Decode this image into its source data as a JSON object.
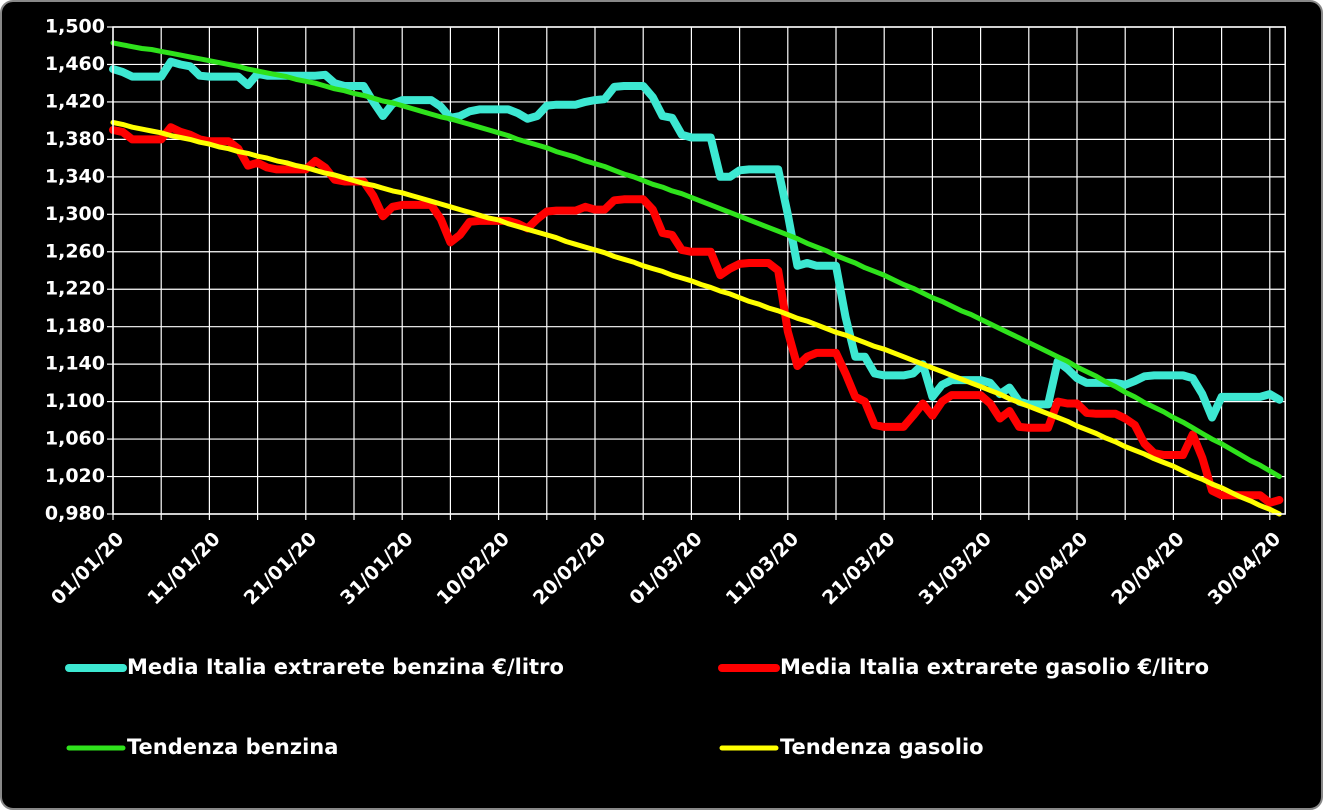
{
  "chart_data": {
    "type": "line",
    "categories": [
      "01/01/20",
      null,
      null,
      null,
      null,
      null,
      null,
      null,
      null,
      null,
      "11/01/20",
      null,
      null,
      null,
      null,
      null,
      null,
      null,
      null,
      null,
      "21/01/20",
      null,
      null,
      null,
      null,
      null,
      null,
      null,
      null,
      null,
      "31/01/20",
      null,
      null,
      null,
      null,
      null,
      null,
      null,
      null,
      null,
      "10/02/20",
      null,
      null,
      null,
      null,
      null,
      null,
      null,
      null,
      null,
      "20/02/20",
      null,
      null,
      null,
      null,
      null,
      null,
      null,
      null,
      null,
      "01/03/20",
      null,
      null,
      null,
      null,
      null,
      null,
      null,
      null,
      null,
      "11/03/20",
      null,
      null,
      null,
      null,
      null,
      null,
      null,
      null,
      null,
      "21/03/20",
      null,
      null,
      null,
      null,
      null,
      null,
      null,
      null,
      null,
      "31/03/20",
      null,
      null,
      null,
      null,
      null,
      null,
      null,
      null,
      null,
      "10/04/20",
      null,
      null,
      null,
      null,
      null,
      null,
      null,
      null,
      null,
      "20/04/20",
      null,
      null,
      null,
      null,
      null,
      null,
      null,
      null,
      null,
      "30/04/20",
      null
    ],
    "series": [
      {
        "name": "Media Italia extrarete benzina €/litro",
        "color": "#3de8d2",
        "values": [
          1.455,
          1.452,
          1.447,
          1.447,
          1.447,
          1.447,
          1.463,
          1.46,
          1.458,
          1.448,
          1.447,
          1.447,
          1.447,
          1.447,
          1.438,
          1.45,
          1.448,
          1.448,
          1.448,
          1.448,
          1.448,
          1.448,
          1.449,
          1.44,
          1.437,
          1.437,
          1.437,
          1.42,
          1.405,
          1.418,
          1.422,
          1.422,
          1.422,
          1.422,
          1.415,
          1.403,
          1.405,
          1.41,
          1.412,
          1.412,
          1.412,
          1.412,
          1.408,
          1.402,
          1.405,
          1.416,
          1.417,
          1.417,
          1.417,
          1.42,
          1.422,
          1.423,
          1.436,
          1.437,
          1.437,
          1.437,
          1.425,
          1.405,
          1.403,
          1.385,
          1.382,
          1.382,
          1.382,
          1.34,
          1.34,
          1.347,
          1.348,
          1.348,
          1.348,
          1.348,
          1.3,
          1.245,
          1.248,
          1.245,
          1.245,
          1.245,
          1.19,
          1.148,
          1.148,
          1.13,
          1.128,
          1.128,
          1.128,
          1.13,
          1.14,
          1.105,
          1.118,
          1.123,
          1.123,
          1.123,
          1.123,
          1.12,
          1.108,
          1.115,
          1.1,
          1.097,
          1.097,
          1.097,
          1.143,
          1.135,
          1.125,
          1.12,
          1.12,
          1.12,
          1.12,
          1.118,
          1.122,
          1.127,
          1.128,
          1.128,
          1.128,
          1.128,
          1.125,
          1.108,
          1.083,
          1.105,
          1.105,
          1.105,
          1.105,
          1.105,
          1.108,
          1.102
        ]
      },
      {
        "name": "Media Italia extrarete gasolio €/litro",
        "color": "#ff0000",
        "values": [
          1.39,
          1.388,
          1.38,
          1.38,
          1.38,
          1.38,
          1.393,
          1.388,
          1.385,
          1.38,
          1.378,
          1.378,
          1.378,
          1.37,
          1.352,
          1.355,
          1.35,
          1.348,
          1.348,
          1.348,
          1.348,
          1.357,
          1.35,
          1.337,
          1.335,
          1.335,
          1.335,
          1.32,
          1.298,
          1.308,
          1.31,
          1.31,
          1.31,
          1.31,
          1.295,
          1.27,
          1.278,
          1.292,
          1.293,
          1.293,
          1.293,
          1.293,
          1.29,
          1.285,
          1.295,
          1.303,
          1.304,
          1.304,
          1.304,
          1.308,
          1.305,
          1.305,
          1.315,
          1.316,
          1.316,
          1.316,
          1.305,
          1.28,
          1.278,
          1.262,
          1.26,
          1.26,
          1.26,
          1.235,
          1.242,
          1.247,
          1.248,
          1.248,
          1.248,
          1.24,
          1.175,
          1.138,
          1.148,
          1.152,
          1.152,
          1.152,
          1.13,
          1.105,
          1.1,
          1.075,
          1.073,
          1.073,
          1.073,
          1.085,
          1.098,
          1.085,
          1.1,
          1.107,
          1.107,
          1.107,
          1.107,
          1.098,
          1.082,
          1.09,
          1.073,
          1.072,
          1.072,
          1.072,
          1.1,
          1.098,
          1.098,
          1.088,
          1.087,
          1.087,
          1.087,
          1.082,
          1.075,
          1.055,
          1.045,
          1.043,
          1.043,
          1.043,
          1.065,
          1.04,
          1.005,
          1.0,
          1.0,
          1.0,
          1.0,
          1.0,
          0.992,
          0.995
        ]
      },
      {
        "name": "Tendenza benzina",
        "color": "#2fe21c",
        "values": [
          1.483,
          1.481,
          1.479,
          1.477,
          1.476,
          1.474,
          1.472,
          1.47,
          1.468,
          1.466,
          1.464,
          1.462,
          1.46,
          1.458,
          1.455,
          1.453,
          1.451,
          1.449,
          1.447,
          1.444,
          1.442,
          1.44,
          1.437,
          1.434,
          1.432,
          1.429,
          1.427,
          1.424,
          1.421,
          1.419,
          1.416,
          1.413,
          1.41,
          1.407,
          1.404,
          1.402,
          1.399,
          1.396,
          1.393,
          1.39,
          1.387,
          1.384,
          1.38,
          1.377,
          1.374,
          1.371,
          1.367,
          1.364,
          1.361,
          1.357,
          1.354,
          1.351,
          1.347,
          1.343,
          1.34,
          1.336,
          1.332,
          1.329,
          1.325,
          1.322,
          1.318,
          1.314,
          1.31,
          1.306,
          1.302,
          1.298,
          1.294,
          1.29,
          1.286,
          1.282,
          1.278,
          1.274,
          1.269,
          1.265,
          1.261,
          1.256,
          1.252,
          1.248,
          1.243,
          1.239,
          1.235,
          1.23,
          1.225,
          1.221,
          1.216,
          1.211,
          1.207,
          1.202,
          1.197,
          1.193,
          1.188,
          1.183,
          1.178,
          1.173,
          1.168,
          1.163,
          1.158,
          1.153,
          1.148,
          1.143,
          1.137,
          1.132,
          1.127,
          1.121,
          1.116,
          1.11,
          1.105,
          1.099,
          1.094,
          1.089,
          1.083,
          1.078,
          1.072,
          1.066,
          1.06,
          1.055,
          1.049,
          1.043,
          1.037,
          1.032,
          1.026,
          1.02
        ]
      },
      {
        "name": "Tendenza gasolio",
        "color": "#ffff00",
        "values": [
          1.398,
          1.396,
          1.393,
          1.391,
          1.389,
          1.387,
          1.384,
          1.382,
          1.38,
          1.377,
          1.375,
          1.372,
          1.37,
          1.367,
          1.365,
          1.362,
          1.36,
          1.357,
          1.355,
          1.352,
          1.35,
          1.347,
          1.344,
          1.342,
          1.339,
          1.336,
          1.333,
          1.331,
          1.328,
          1.325,
          1.323,
          1.32,
          1.317,
          1.314,
          1.311,
          1.308,
          1.305,
          1.302,
          1.299,
          1.296,
          1.294,
          1.29,
          1.287,
          1.284,
          1.281,
          1.278,
          1.275,
          1.271,
          1.268,
          1.265,
          1.262,
          1.259,
          1.255,
          1.252,
          1.249,
          1.245,
          1.242,
          1.239,
          1.235,
          1.232,
          1.229,
          1.225,
          1.222,
          1.218,
          1.215,
          1.211,
          1.207,
          1.204,
          1.2,
          1.197,
          1.193,
          1.189,
          1.186,
          1.182,
          1.178,
          1.174,
          1.171,
          1.167,
          1.163,
          1.159,
          1.156,
          1.152,
          1.148,
          1.144,
          1.14,
          1.136,
          1.132,
          1.128,
          1.124,
          1.12,
          1.116,
          1.112,
          1.108,
          1.103,
          1.099,
          1.095,
          1.091,
          1.087,
          1.083,
          1.079,
          1.074,
          1.07,
          1.066,
          1.061,
          1.057,
          1.052,
          1.048,
          1.044,
          1.039,
          1.035,
          1.031,
          1.026,
          1.021,
          1.017,
          1.012,
          1.008,
          1.003,
          0.998,
          0.994,
          0.989,
          0.985,
          0.98
        ]
      }
    ],
    "ylim": [
      0.98,
      1.5
    ],
    "yticks": [
      {
        "value": 1.5,
        "label": "1,500"
      },
      {
        "value": 1.46,
        "label": "1,460"
      },
      {
        "value": 1.42,
        "label": "1,420"
      },
      {
        "value": 1.38,
        "label": "1,380"
      },
      {
        "value": 1.34,
        "label": "1,340"
      },
      {
        "value": 1.3,
        "label": "1,300"
      },
      {
        "value": 1.26,
        "label": "1,260"
      },
      {
        "value": 1.22,
        "label": "1,220"
      },
      {
        "value": 1.18,
        "label": "1,180"
      },
      {
        "value": 1.14,
        "label": "1,140"
      },
      {
        "value": 1.1,
        "label": "1,100"
      },
      {
        "value": 1.06,
        "label": "1,060"
      },
      {
        "value": 1.02,
        "label": "1,020"
      },
      {
        "value": 0.98,
        "label": "0,980"
      }
    ],
    "grid": true,
    "legend": "bottom"
  }
}
